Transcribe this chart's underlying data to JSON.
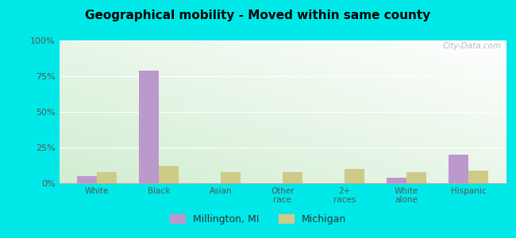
{
  "title": "Geographical mobility - Moved within same county",
  "categories": [
    "White",
    "Black",
    "Asian",
    "Other\nrace",
    "2+\nraces",
    "White\nalone",
    "Hispanic"
  ],
  "millington_values": [
    5,
    79,
    0,
    0,
    0,
    4,
    20
  ],
  "michigan_values": [
    8,
    12,
    8,
    8,
    10,
    8,
    9
  ],
  "millington_color": "#bb99cc",
  "michigan_color": "#cccc88",
  "yticks": [
    0,
    25,
    50,
    75,
    100
  ],
  "yticklabels": [
    "0%",
    "25%",
    "50%",
    "75%",
    "100%"
  ],
  "ylim": [
    0,
    100
  ],
  "bar_width": 0.32,
  "outer_background": "#00e8e8",
  "legend_labels": [
    "Millington, MI",
    "Michigan"
  ],
  "watermark": "City-Data.com"
}
